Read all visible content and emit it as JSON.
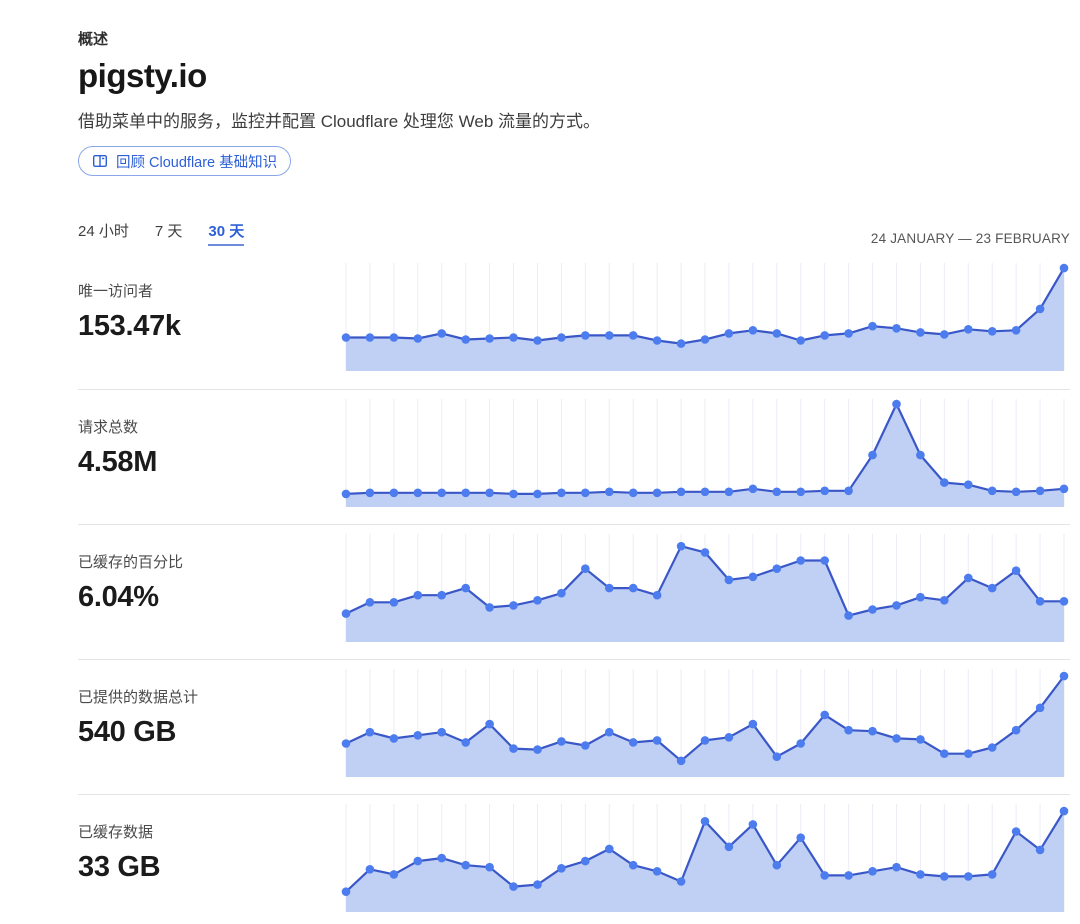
{
  "header": {
    "eyebrow": "概述",
    "title": "pigsty.io",
    "subtitle": "借助菜单中的服务，监控并配置 Cloudflare 处理您 Web 流量的方式。",
    "review_button_label": "回顾 Cloudflare 基础知识",
    "review_button_icon": "book-open-icon"
  },
  "time_tabs": [
    {
      "label": "24 小时",
      "active": false
    },
    {
      "label": "7 天",
      "active": false
    },
    {
      "label": "30 天",
      "active": true
    }
  ],
  "date_range": "24 JANUARY — 23 FEBRUARY",
  "colors": {
    "accent_blue": "#2c5fd6",
    "chart_line": "#3a57c8",
    "chart_dot": "#4c7ced",
    "chart_fill": "#bfd0f4",
    "chart_grid": "#ebedf6",
    "divider": "#e4e4e4"
  },
  "chart_data": [
    {
      "type": "area",
      "label": "唯一访问者",
      "value": "153.47k",
      "x_range": "24 JANUARY — 23 FEBRUARY (31 daily points, axes unlabeled sparkline)",
      "y_scale": "percent of chart height",
      "relative_values": [
        27,
        27,
        27,
        26,
        31,
        25,
        26,
        27,
        24,
        27,
        29,
        29,
        29,
        24,
        21,
        25,
        31,
        34,
        31,
        24,
        29,
        31,
        38,
        36,
        32,
        30,
        35,
        33,
        34,
        55,
        95
      ]
    },
    {
      "type": "area",
      "label": "请求总数",
      "value": "4.58M",
      "x_range": "24 JANUARY — 23 FEBRUARY (31 daily points, axes unlabeled sparkline)",
      "y_scale": "percent of chart height",
      "relative_values": [
        7,
        8,
        8,
        8,
        8,
        8,
        8,
        7,
        7,
        8,
        8,
        9,
        8,
        8,
        9,
        9,
        9,
        12,
        9,
        9,
        10,
        10,
        45,
        95,
        45,
        18,
        16,
        10,
        9,
        10,
        12
      ]
    },
    {
      "type": "area",
      "label": "已缓存的百分比",
      "value": "6.04%",
      "x_range": "24 JANUARY — 23 FEBRUARY (31 daily points, axes unlabeled sparkline)",
      "y_scale": "percent of chart height",
      "relative_values": [
        22,
        33,
        33,
        40,
        40,
        47,
        28,
        30,
        35,
        42,
        66,
        47,
        47,
        40,
        88,
        82,
        55,
        58,
        66,
        74,
        74,
        20,
        26,
        30,
        38,
        35,
        57,
        47,
        64,
        34,
        34
      ]
    },
    {
      "type": "area",
      "label": "已提供的数据总计",
      "value": "540 GB",
      "x_range": "24 JANUARY — 23 FEBRUARY (31 daily points, axes unlabeled sparkline)",
      "y_scale": "percent of chart height",
      "relative_values": [
        27,
        38,
        32,
        35,
        38,
        28,
        46,
        22,
        21,
        29,
        25,
        38,
        28,
        30,
        10,
        30,
        33,
        46,
        14,
        27,
        55,
        40,
        39,
        32,
        31,
        17,
        17,
        23,
        40,
        62,
        93
      ]
    },
    {
      "type": "area",
      "label": "已缓存数据",
      "value": "33 GB",
      "x_range": "24 JANUARY — 23 FEBRUARY (31 daily points, axes unlabeled sparkline)",
      "y_scale": "percent of chart height",
      "relative_values": [
        14,
        36,
        31,
        44,
        47,
        40,
        38,
        19,
        21,
        37,
        44,
        56,
        40,
        34,
        24,
        83,
        58,
        80,
        40,
        67,
        30,
        30,
        34,
        38,
        31,
        29,
        29,
        31,
        73,
        55,
        93
      ]
    }
  ]
}
